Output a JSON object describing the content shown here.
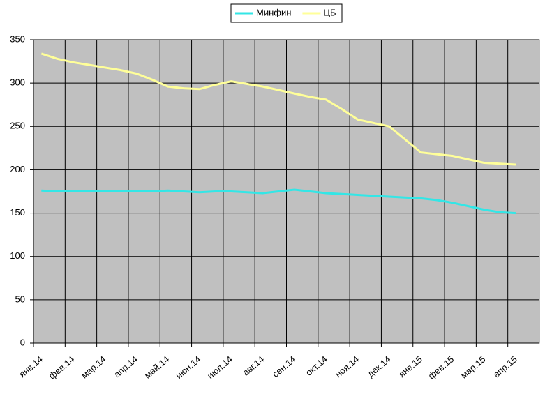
{
  "chart_data": {
    "type": "line",
    "categories": [
      "янв.14",
      null,
      "фев.14",
      null,
      "мар.14",
      null,
      "апр.14",
      null,
      "май.14",
      null,
      "июн.14",
      null,
      "июл.14",
      null,
      "авг.14",
      null,
      "сен.14",
      null,
      "окт.14",
      null,
      "ноя.14",
      null,
      "дек.14",
      null,
      "янв.15",
      null,
      "фев.15",
      null,
      "мар.15",
      null,
      "апр.15",
      null
    ],
    "series": [
      {
        "name": "Минфин",
        "color": "#33e6e6",
        "values": [
          176,
          175,
          175,
          175,
          175,
          175,
          175,
          175,
          176,
          175,
          174,
          175,
          175,
          174,
          173,
          175,
          177,
          175,
          173,
          172,
          171,
          170,
          169,
          168,
          167,
          165,
          162,
          158,
          154,
          151,
          150,
          null
        ]
      },
      {
        "name": "ЦБ",
        "color": "#ffff99",
        "values": [
          334,
          328,
          324,
          321,
          318,
          315,
          311,
          304,
          296,
          294,
          293,
          298,
          302,
          299,
          296,
          292,
          288,
          284,
          281,
          270,
          258,
          254,
          250,
          235,
          220,
          218,
          216,
          212,
          208,
          207,
          206,
          null
        ]
      }
    ],
    "ylim": [
      0,
      350
    ],
    "yticks": [
      0,
      50,
      100,
      150,
      200,
      250,
      300,
      350
    ],
    "grid": true,
    "legend": "top"
  }
}
